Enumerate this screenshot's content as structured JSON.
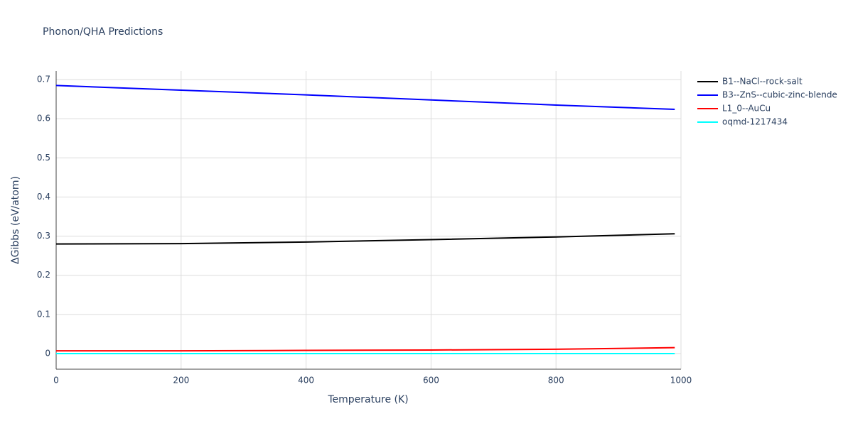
{
  "chart_data": {
    "type": "line",
    "title": "Phonon/QHA Predictions",
    "x_label": "Temperature (K)",
    "y_label": "ΔGibbs (eV/atom)",
    "x": [
      0,
      200,
      400,
      600,
      800,
      990
    ],
    "series": [
      {
        "name": "B1--NaCl--rock-salt",
        "color": "#000000",
        "values": [
          0.28,
          0.281,
          0.285,
          0.291,
          0.298,
          0.306
        ]
      },
      {
        "name": "B3--ZnS--cubic-zinc-blende",
        "color": "#0000ff",
        "values": [
          0.685,
          0.673,
          0.661,
          0.648,
          0.635,
          0.624
        ]
      },
      {
        "name": "L1_0--AuCu",
        "color": "#ff0000",
        "values": [
          0.007,
          0.007,
          0.008,
          0.009,
          0.011,
          0.015
        ]
      },
      {
        "name": "oqmd-1217434",
        "color": "#00ffff",
        "values": [
          0,
          0,
          0,
          0,
          0,
          0
        ]
      }
    ],
    "xlim": [
      0,
      1000
    ],
    "xticks": [
      0,
      200,
      400,
      600,
      800,
      1000
    ],
    "ylim": [
      -0.04,
      0.722
    ],
    "yticks": [
      0,
      0.1,
      0.2,
      0.3,
      0.4,
      0.5,
      0.6,
      0.7
    ],
    "grid": true,
    "legend": "outside-right"
  }
}
